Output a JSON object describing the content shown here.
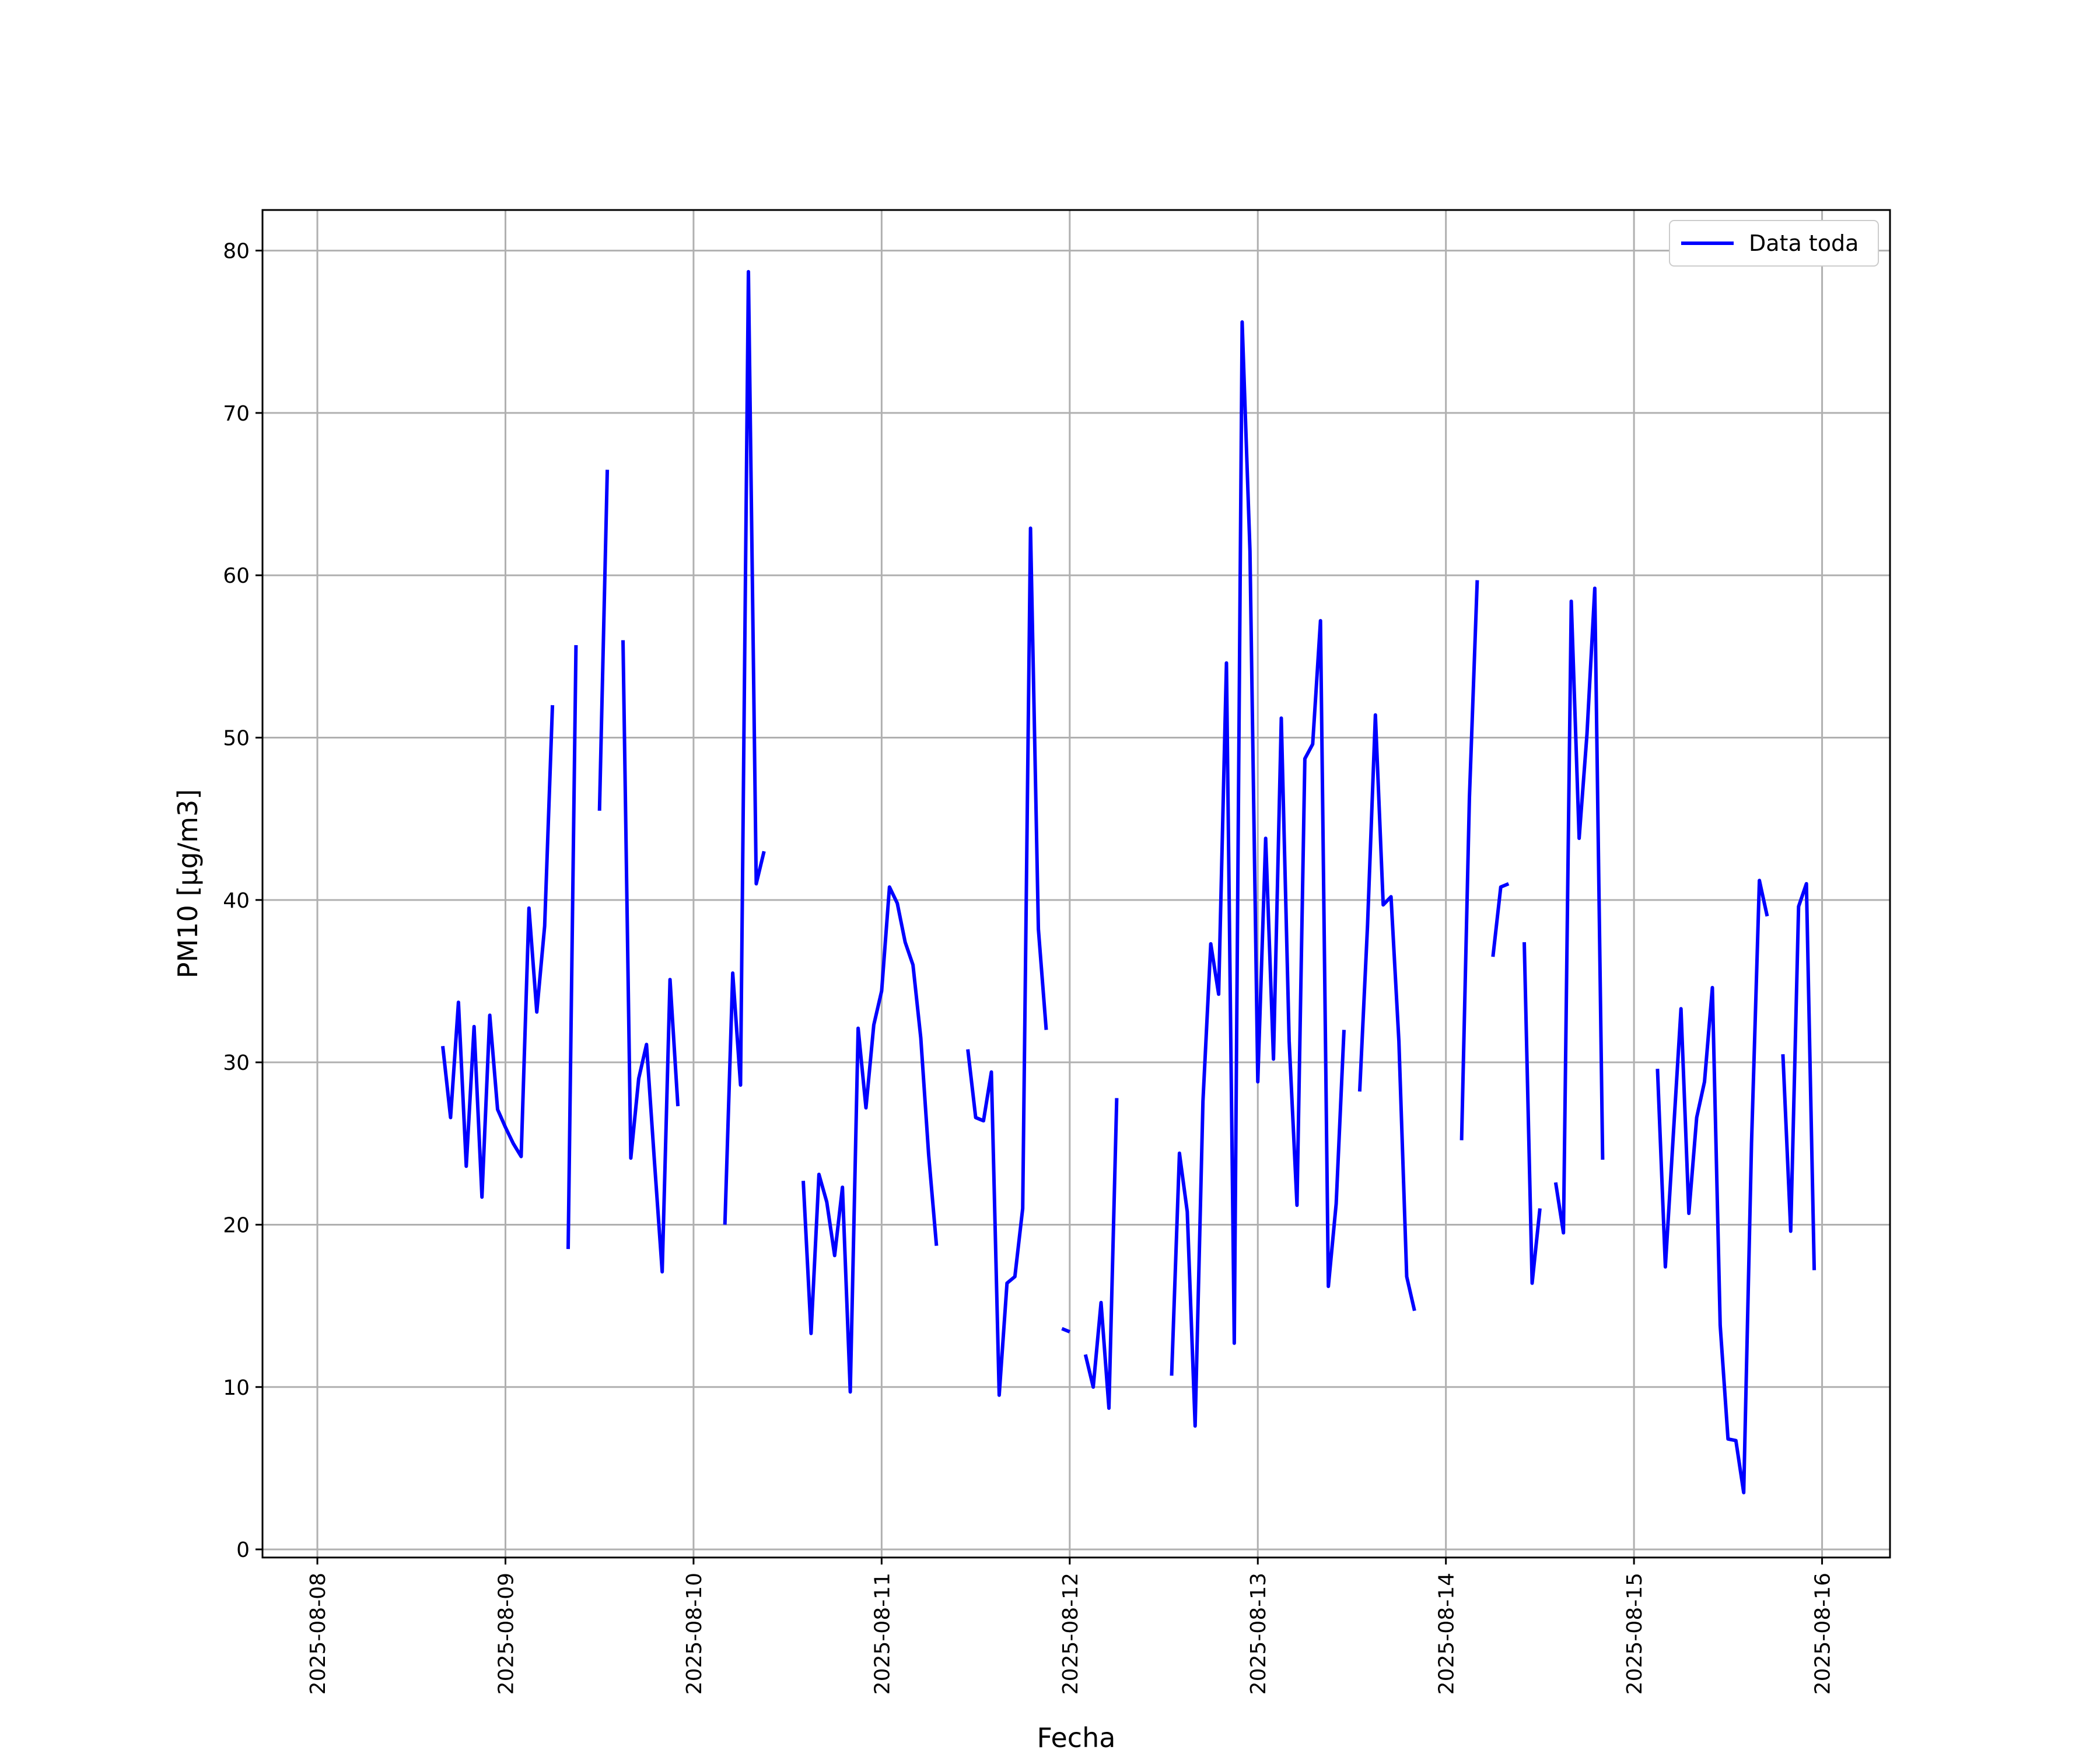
{
  "chart_data": {
    "type": "line",
    "xlabel": "Fecha",
    "ylabel": "PM10 [μg/m3]",
    "x_ticks": [
      "2025-08-08",
      "2025-08-09",
      "2025-08-10",
      "2025-08-11",
      "2025-08-12",
      "2025-08-13",
      "2025-08-14",
      "2025-08-15",
      "2025-08-16"
    ],
    "y_ticks": [
      0,
      10,
      20,
      30,
      40,
      50,
      60,
      70,
      80
    ],
    "xlim": [
      "2025-08-07 17:00",
      "2025-08-16 08:40"
    ],
    "ylim": [
      -0.5,
      82.5
    ],
    "grid": true,
    "legend": {
      "position": "top-right",
      "entries": [
        "Data toda"
      ]
    },
    "colors": {
      "series": "#0000ff",
      "grid": "#b0b0b0",
      "axes": "#000000"
    },
    "series": [
      {
        "name": "Data toda",
        "segments": [
          [
            [
              "2025-08-08 16:00",
              31.0
            ],
            [
              "2025-08-08 17:00",
              26.6
            ],
            [
              "2025-08-08 18:00",
              33.7
            ],
            [
              "2025-08-08 19:00",
              23.6
            ],
            [
              "2025-08-08 20:00",
              32.2
            ],
            [
              "2025-08-08 21:00",
              21.7
            ],
            [
              "2025-08-08 22:00",
              32.9
            ],
            [
              "2025-08-08 23:00",
              27.1
            ],
            [
              "2025-08-09 00:00",
              26.0
            ],
            [
              "2025-08-09 01:00",
              25.0
            ],
            [
              "2025-08-09 02:00",
              24.2
            ],
            [
              "2025-08-09 03:00",
              39.5
            ],
            [
              "2025-08-09 04:00",
              33.1
            ],
            [
              "2025-08-09 05:00",
              38.4
            ],
            [
              "2025-08-09 06:00",
              52.0
            ]
          ],
          [
            [
              "2025-08-09 08:00",
              18.5
            ],
            [
              "2025-08-09 09:00",
              55.7
            ]
          ],
          [
            [
              "2025-08-09 12:00",
              45.5
            ],
            [
              "2025-08-09 13:00",
              66.5
            ]
          ],
          [
            [
              "2025-08-09 15:00",
              56.0
            ],
            [
              "2025-08-09 16:00",
              24.1
            ],
            [
              "2025-08-09 17:00",
              29.0
            ],
            [
              "2025-08-09 18:00",
              31.1
            ],
            [
              "2025-08-09 19:00",
              24.0
            ],
            [
              "2025-08-09 20:00",
              17.1
            ],
            [
              "2025-08-09 21:00",
              35.1
            ],
            [
              "2025-08-09 22:00",
              27.3
            ]
          ],
          [
            [
              "2025-08-10 04:00",
              20.0
            ],
            [
              "2025-08-10 05:00",
              35.5
            ],
            [
              "2025-08-10 06:00",
              28.6
            ],
            [
              "2025-08-10 07:00",
              78.7
            ],
            [
              "2025-08-10 08:00",
              41.0
            ],
            [
              "2025-08-10 09:00",
              43.0
            ]
          ],
          [
            [
              "2025-08-10 14:00",
              22.7
            ],
            [
              "2025-08-10 15:00",
              13.3
            ],
            [
              "2025-08-10 16:00",
              23.1
            ],
            [
              "2025-08-10 17:00",
              21.4
            ],
            [
              "2025-08-10 18:00",
              18.1
            ],
            [
              "2025-08-10 19:00",
              22.3
            ],
            [
              "2025-08-10 20:00",
              9.7
            ],
            [
              "2025-08-10 21:00",
              32.1
            ],
            [
              "2025-08-10 22:00",
              27.2
            ],
            [
              "2025-08-10 23:00",
              32.3
            ],
            [
              "2025-08-11 00:00",
              34.4
            ],
            [
              "2025-08-11 01:00",
              40.8
            ],
            [
              "2025-08-11 02:00",
              39.8
            ],
            [
              "2025-08-11 03:00",
              37.4
            ],
            [
              "2025-08-11 04:00",
              36.0
            ],
            [
              "2025-08-11 05:00",
              31.5
            ],
            [
              "2025-08-11 06:00",
              24.3
            ],
            [
              "2025-08-11 07:00",
              18.7
            ]
          ],
          [
            [
              "2025-08-11 11:00",
              30.8
            ],
            [
              "2025-08-11 12:00",
              26.6
            ],
            [
              "2025-08-11 13:00",
              26.4
            ],
            [
              "2025-08-11 14:00",
              29.4
            ],
            [
              "2025-08-11 15:00",
              9.5
            ],
            [
              "2025-08-11 16:00",
              16.4
            ],
            [
              "2025-08-11 17:00",
              16.8
            ],
            [
              "2025-08-11 18:00",
              21.0
            ],
            [
              "2025-08-11 19:00",
              62.9
            ],
            [
              "2025-08-11 20:00",
              38.2
            ],
            [
              "2025-08-11 21:00",
              32.0
            ]
          ],
          [
            [
              "2025-08-11 23:00",
              13.6
            ],
            [
              "2025-08-12 00:00",
              13.4
            ]
          ],
          [
            [
              "2025-08-12 02:00",
              12.0
            ],
            [
              "2025-08-12 03:00",
              10.0
            ],
            [
              "2025-08-12 04:00",
              15.2
            ],
            [
              "2025-08-12 05:00",
              8.7
            ],
            [
              "2025-08-12 06:00",
              27.8
            ]
          ],
          [
            [
              "2025-08-12 13:00",
              10.7
            ],
            [
              "2025-08-12 14:00",
              24.4
            ],
            [
              "2025-08-12 15:00",
              20.8
            ],
            [
              "2025-08-12 16:00",
              7.6
            ],
            [
              "2025-08-12 17:00",
              27.6
            ],
            [
              "2025-08-12 18:00",
              37.3
            ],
            [
              "2025-08-12 19:00",
              34.2
            ],
            [
              "2025-08-12 20:00",
              54.6
            ],
            [
              "2025-08-12 21:00",
              12.7
            ],
            [
              "2025-08-12 22:00",
              75.6
            ],
            [
              "2025-08-12 23:00",
              61.5
            ],
            [
              "2025-08-13 00:00",
              28.8
            ],
            [
              "2025-08-13 01:00",
              43.8
            ],
            [
              "2025-08-13 02:00",
              30.2
            ],
            [
              "2025-08-13 03:00",
              51.2
            ],
            [
              "2025-08-13 04:00",
              31.3
            ],
            [
              "2025-08-13 05:00",
              21.2
            ],
            [
              "2025-08-13 06:00",
              48.7
            ],
            [
              "2025-08-13 07:00",
              49.6
            ],
            [
              "2025-08-13 08:00",
              57.2
            ],
            [
              "2025-08-13 09:00",
              16.2
            ],
            [
              "2025-08-13 10:00",
              21.3
            ],
            [
              "2025-08-13 11:00",
              32.0
            ]
          ],
          [
            [
              "2025-08-13 13:00",
              28.2
            ],
            [
              "2025-08-13 14:00",
              38.4
            ],
            [
              "2025-08-13 15:00",
              51.4
            ],
            [
              "2025-08-13 16:00",
              39.7
            ],
            [
              "2025-08-13 17:00",
              40.2
            ],
            [
              "2025-08-13 18:00",
              31.3
            ],
            [
              "2025-08-13 19:00",
              16.8
            ],
            [
              "2025-08-13 20:00",
              14.7
            ]
          ],
          [
            [
              "2025-08-14 02:00",
              25.2
            ],
            [
              "2025-08-14 03:00",
              46.3
            ],
            [
              "2025-08-14 04:00",
              59.7
            ]
          ],
          [
            [
              "2025-08-14 06:00",
              36.5
            ],
            [
              "2025-08-14 07:00",
              40.8
            ],
            [
              "2025-08-14 08:00",
              41.0
            ]
          ],
          [
            [
              "2025-08-14 10:00",
              37.4
            ],
            [
              "2025-08-14 11:00",
              16.4
            ],
            [
              "2025-08-14 12:00",
              21.0
            ]
          ],
          [
            [
              "2025-08-14 14:00",
              22.6
            ],
            [
              "2025-08-14 15:00",
              19.5
            ],
            [
              "2025-08-14 16:00",
              58.4
            ],
            [
              "2025-08-14 17:00",
              43.8
            ],
            [
              "2025-08-14 18:00",
              50.2
            ],
            [
              "2025-08-14 19:00",
              59.2
            ],
            [
              "2025-08-14 20:00",
              24.0
            ]
          ],
          [
            [
              "2025-08-15 03:00",
              29.6
            ],
            [
              "2025-08-15 04:00",
              17.4
            ],
            [
              "2025-08-15 05:00",
              25.4
            ],
            [
              "2025-08-15 06:00",
              33.3
            ],
            [
              "2025-08-15 07:00",
              20.7
            ],
            [
              "2025-08-15 08:00",
              26.6
            ],
            [
              "2025-08-15 09:00",
              28.8
            ],
            [
              "2025-08-15 10:00",
              34.6
            ],
            [
              "2025-08-15 11:00",
              13.8
            ],
            [
              "2025-08-15 12:00",
              6.8
            ],
            [
              "2025-08-15 13:00",
              6.7
            ],
            [
              "2025-08-15 14:00",
              3.5
            ],
            [
              "2025-08-15 15:00",
              25.0
            ],
            [
              "2025-08-15 16:00",
              41.2
            ],
            [
              "2025-08-15 17:00",
              39.0
            ]
          ],
          [
            [
              "2025-08-15 19:00",
              30.5
            ],
            [
              "2025-08-15 20:00",
              19.6
            ],
            [
              "2025-08-15 21:00",
              39.6
            ],
            [
              "2025-08-15 22:00",
              41.0
            ],
            [
              "2025-08-15 23:00",
              17.2
            ]
          ]
        ]
      }
    ]
  }
}
